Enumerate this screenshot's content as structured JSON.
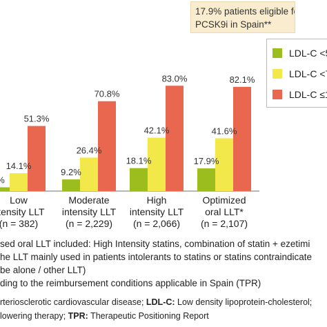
{
  "callout": {
    "line1": "17.9% patients eligible for",
    "line2": "PCSK9i in Spain**"
  },
  "legend": [
    {
      "label": "LDL-C <5",
      "color": "#9cbd1e"
    },
    {
      "label": "LDL-C <7",
      "color": "#f2e84a"
    },
    {
      "label": "LDL-C ≤1",
      "color": "#e8674e"
    }
  ],
  "chart_data": {
    "type": "bar",
    "categories": [
      {
        "lines": [
          "Low",
          "ntensity LLT",
          "(n = 382)"
        ]
      },
      {
        "lines": [
          "Moderate",
          "intensity LLT",
          "(n = 2,229)"
        ]
      },
      {
        "lines": [
          "High",
          "intensity LLT",
          "(n = 2,066)"
        ]
      },
      {
        "lines": [
          "Optimized",
          "oral LLT*",
          "(n = 2,107)"
        ]
      }
    ],
    "series": [
      {
        "name": "LDL-C <5",
        "color": "#9cbd1e",
        "values": [
          3,
          9.2,
          18.1,
          17.9
        ],
        "labels": [
          "%",
          "9.2%",
          "18.1%",
          "17.9%"
        ]
      },
      {
        "name": "LDL-C <7",
        "color": "#f2e84a",
        "values": [
          14.1,
          26.4,
          42.1,
          41.6
        ],
        "labels": [
          "14.1%",
          "26.4%",
          "42.1%",
          "41.6%"
        ]
      },
      {
        "name": "LDL-C ≤1",
        "color": "#e8674e",
        "values": [
          51.3,
          70.8,
          83.0,
          82.1
        ],
        "labels": [
          "51.3%",
          "70.8%",
          "83.0%",
          "82.1%"
        ]
      }
    ],
    "ylim": [
      0,
      100
    ]
  },
  "notes": {
    "line1": "sed oral LLT included: High Intensity statins, combination of statin + ezetimi",
    "line2": "he LLT mainly used in patients intolerants to statins or statins contraindicate",
    "line3": "be alone / other LLT)",
    "line4": "ding to the reimbursement conditions applicable in Spain (TPR)"
  },
  "footer": {
    "line1_a": "rteriosclerotic cardiovascular disease; ",
    "line1_b": "LDL-C:",
    "line1_c": " Low density lipoprotein-cholesterol;",
    "line2_a": "lowering therapy; ",
    "line2_b": "TPR:",
    "line2_c": " Therapeutic Positioning Report"
  }
}
